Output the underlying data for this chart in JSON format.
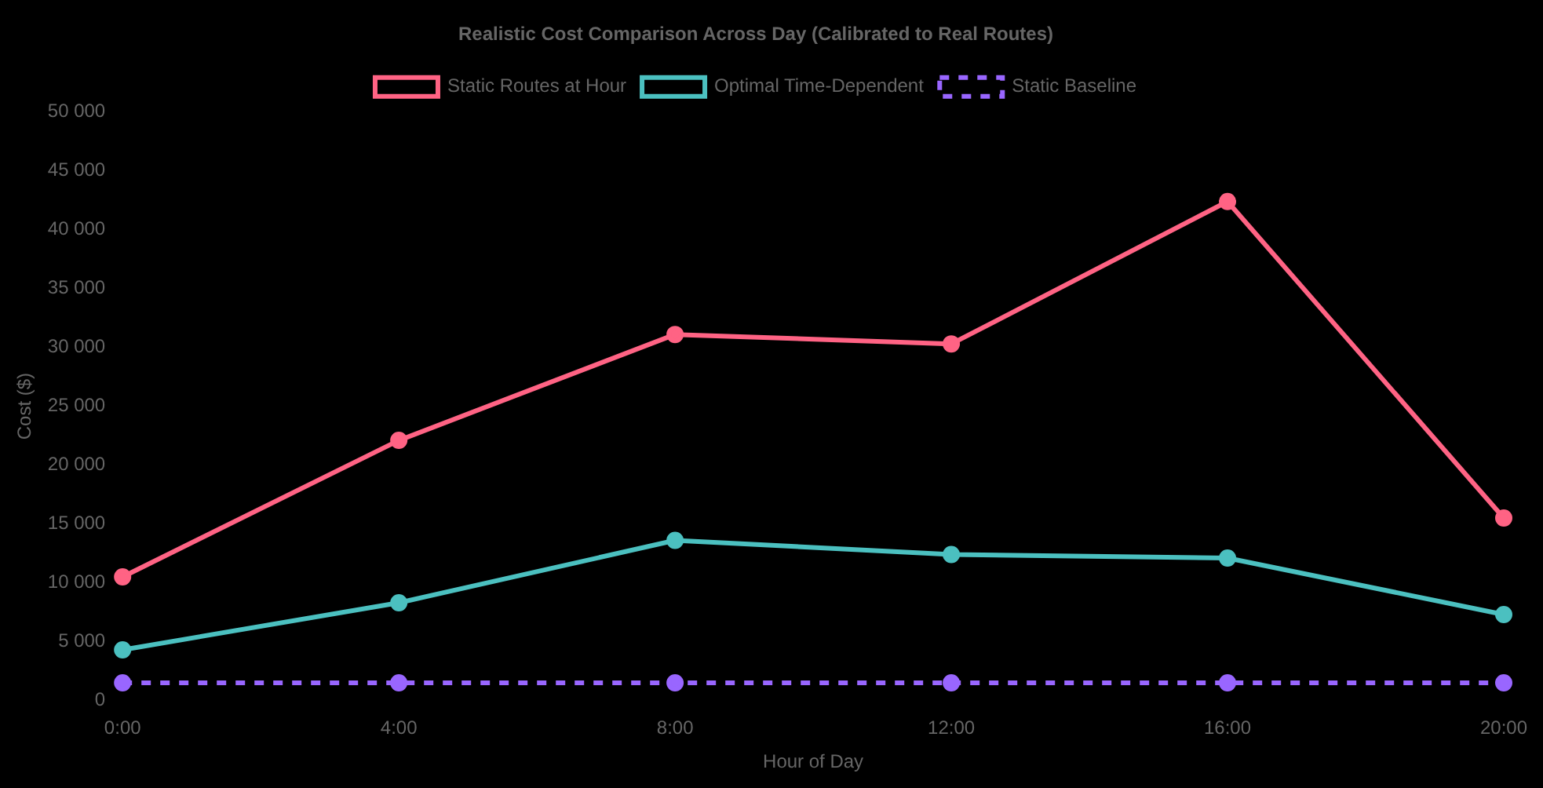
{
  "chart_data": {
    "type": "line",
    "title": "Realistic Cost Comparison Across Day (Calibrated to Real Routes)",
    "xlabel": "Hour of Day",
    "ylabel": "Cost ($)",
    "categories": [
      "0:00",
      "4:00",
      "8:00",
      "12:00",
      "16:00",
      "20:00"
    ],
    "series": [
      {
        "name": "Static Routes at Hour",
        "color": "#ff6384",
        "values": [
          10500,
          22100,
          31100,
          30300,
          42400,
          15500
        ]
      },
      {
        "name": "Optimal Time-Dependent",
        "color": "#4bc0c0",
        "values": [
          4300,
          8300,
          13600,
          12400,
          12100,
          7300
        ]
      },
      {
        "name": "Static Baseline",
        "color": "#9966ff",
        "line_style": "dashed",
        "values": [
          1500,
          1500,
          1500,
          1500,
          1500,
          1500
        ]
      }
    ],
    "ylim": [
      0,
      50000
    ],
    "yticks": [
      {
        "value": 0,
        "label": "0"
      },
      {
        "value": 5000,
        "label": "5 000"
      },
      {
        "value": 10000,
        "label": "10 000"
      },
      {
        "value": 15000,
        "label": "15 000"
      },
      {
        "value": 20000,
        "label": "20 000"
      },
      {
        "value": 25000,
        "label": "25 000"
      },
      {
        "value": 30000,
        "label": "30 000"
      },
      {
        "value": 35000,
        "label": "35 000"
      },
      {
        "value": 40000,
        "label": "40 000"
      },
      {
        "value": 45000,
        "label": "45 000"
      },
      {
        "value": 50000,
        "label": "50 000"
      }
    ],
    "grid": false,
    "legend": "top",
    "marker": "circle",
    "line_style": "solid"
  }
}
